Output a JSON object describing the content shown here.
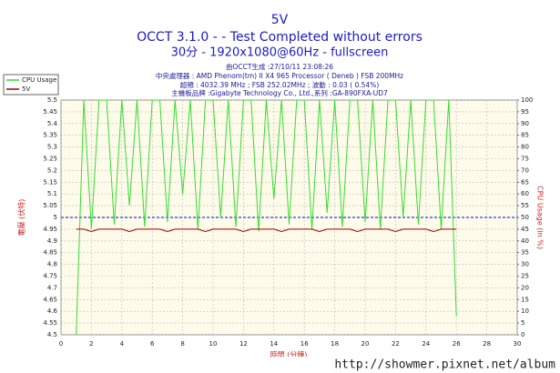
{
  "chart_data": {
    "type": "line",
    "title": "5V",
    "subtitle": "OCCT 3.1.0 -  - Test Completed without errors",
    "subtitle2": "30分 - 1920x1080@60Hz - fullscreen",
    "info": [
      "由OCCT生成 :27/10/11 23:08:26",
      "中央處理器 : AMD Phenom(tm) II X4 965 Processor ( Deneb ) FSB 200MHz",
      "超頻 : 4032.39 MHz ; FSB 252.02MHz ; 波動 : 0.03 ( 0.54%)",
      "主機板品牌 :Gigabyte Technology Co., Ltd.,系列 :GA-890FXA-UD7"
    ],
    "xlabel": "時間 (分鐘)",
    "ylabel": "電壓 (伏特)",
    "y2label": "CPU Usage (in %)",
    "watermark": "http://showmer.pixnet.net/album",
    "x": [
      1,
      1.5,
      2,
      2.5,
      3,
      3.5,
      4,
      4.5,
      5,
      5.5,
      6,
      6.5,
      7,
      7.5,
      8,
      8.5,
      9,
      9.5,
      10,
      10.5,
      11,
      11.5,
      12,
      12.5,
      13,
      13.5,
      14,
      14.5,
      15,
      15.5,
      16,
      16.5,
      17,
      17.5,
      18,
      18.5,
      19,
      19.5,
      20,
      20.5,
      21,
      21.5,
      22,
      22.5,
      23,
      23.5,
      24,
      24.5,
      25,
      25.5,
      26
    ],
    "series": [
      {
        "name": "CPU Usage",
        "color": "#33dd33",
        "axis": "y2",
        "values": [
          0,
          100,
          45,
          100,
          100,
          47,
          100,
          55,
          100,
          46,
          100,
          100,
          48,
          100,
          60,
          100,
          45,
          100,
          100,
          50,
          100,
          46,
          100,
          100,
          44,
          100,
          58,
          100,
          47,
          100,
          100,
          45,
          100,
          52,
          100,
          46,
          100,
          100,
          48,
          100,
          45,
          100,
          100,
          50,
          100,
          47,
          100,
          100,
          45,
          100,
          8
        ]
      },
      {
        "name": "5V",
        "color": "#990000",
        "values": [
          4.95,
          4.95,
          4.94,
          4.95,
          4.95,
          4.95,
          4.95,
          4.94,
          4.95,
          4.95,
          4.95,
          4.95,
          4.94,
          4.95,
          4.95,
          4.95,
          4.95,
          4.94,
          4.95,
          4.95,
          4.95,
          4.95,
          4.94,
          4.95,
          4.95,
          4.95,
          4.95,
          4.94,
          4.95,
          4.95,
          4.95,
          4.95,
          4.94,
          4.95,
          4.95,
          4.95,
          4.95,
          4.94,
          4.95,
          4.95,
          4.95,
          4.95,
          4.94,
          4.95,
          4.95,
          4.95,
          4.95,
          4.94,
          4.95,
          4.95,
          4.95
        ]
      }
    ],
    "reference_line": 5,
    "reference_color": "#2244dd",
    "xlim": [
      0,
      30
    ],
    "xticks": [
      0,
      2,
      4,
      6,
      8,
      10,
      12,
      14,
      16,
      18,
      20,
      22,
      24,
      26,
      28,
      30
    ],
    "ylim": [
      4.5,
      5.5
    ],
    "yticks": [
      4.5,
      4.55,
      4.6,
      4.65,
      4.7,
      4.75,
      4.8,
      4.85,
      4.9,
      4.95,
      5,
      5.05,
      5.1,
      5.15,
      5.2,
      5.25,
      5.3,
      5.35,
      5.4,
      5.45,
      5.5
    ],
    "y2lim": [
      0,
      100
    ],
    "y2ticks": [
      0,
      5,
      10,
      15,
      20,
      25,
      30,
      35,
      40,
      45,
      50,
      55,
      60,
      65,
      70,
      75,
      80,
      85,
      90,
      95,
      100
    ],
    "grid": true,
    "legend": "top-left"
  }
}
